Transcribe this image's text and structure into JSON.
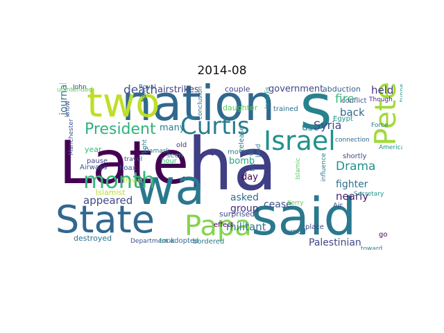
{
  "figure": {
    "title": "2014-08"
  },
  "colors": {
    "background": "#ffffff",
    "palette": [
      "#440154",
      "#3b528b",
      "#21908d",
      "#5dc863",
      "#fde725"
    ]
  },
  "words": [
    {
      "text": "Later",
      "color": "#440154",
      "size": 86
    },
    {
      "text": "ha",
      "color": "#3f3f86",
      "size": 104
    },
    {
      "text": "nation",
      "color": "#31688e",
      "size": 70
    },
    {
      "text": "s",
      "color": "#26828e",
      "size": 90
    },
    {
      "text": "two",
      "color": "#bddf26",
      "size": 58
    },
    {
      "text": "wa",
      "color": "#2a788e",
      "size": 70
    },
    {
      "text": "said",
      "color": "#2a788e",
      "size": 74
    },
    {
      "text": "State",
      "color": "#31688e",
      "size": 54
    },
    {
      "text": "Papa",
      "color": "#84d44b",
      "size": 40
    },
    {
      "text": "Peter",
      "color": "#a0da39",
      "size": 42
    },
    {
      "text": "Israel",
      "color": "#21918c",
      "size": 38
    },
    {
      "text": "Curtis",
      "color": "#287c8e",
      "size": 34
    },
    {
      "text": "month",
      "color": "#35b779",
      "size": 32
    },
    {
      "text": "President",
      "color": "#2db27d",
      "size": 22
    },
    {
      "text": "death",
      "color": "#3b528b",
      "size": 17
    },
    {
      "text": "airstrikes",
      "color": "#433e85",
      "size": 13
    },
    {
      "text": "government",
      "color": "#414487",
      "size": 13
    },
    {
      "text": "abduction",
      "color": "#355f8d",
      "size": 11
    },
    {
      "text": "held",
      "color": "#46337e",
      "size": 15
    },
    {
      "text": "fire",
      "color": "#35b779",
      "size": 17
    },
    {
      "text": "back",
      "color": "#31688e",
      "size": 15
    },
    {
      "text": "Syria",
      "color": "#404688",
      "size": 16
    },
    {
      "text": "use",
      "color": "#26828e",
      "size": 14
    },
    {
      "text": "many",
      "color": "#2a788e",
      "size": 13
    },
    {
      "text": "Drama",
      "color": "#21918c",
      "size": 17
    },
    {
      "text": "fighter",
      "color": "#2d708e",
      "size": 14
    },
    {
      "text": "nearly",
      "color": "#481f70",
      "size": 15
    },
    {
      "text": "appeared",
      "color": "#3e4989",
      "size": 15
    },
    {
      "text": "bomb",
      "color": "#21a685",
      "size": 13
    },
    {
      "text": "day",
      "color": "#440154",
      "size": 13
    },
    {
      "text": "asked",
      "color": "#2e6e8e",
      "size": 14
    },
    {
      "text": "cease",
      "color": "#3b528b",
      "size": 14
    },
    {
      "text": "group",
      "color": "#472d7b",
      "size": 14
    },
    {
      "text": "militant",
      "color": "#2c728e",
      "size": 15
    },
    {
      "text": "Palestinian",
      "color": "#414487",
      "size": 14
    },
    {
      "text": "journalist",
      "color": "#2a788e",
      "size": 14
    },
    {
      "text": "year",
      "color": "#35b779",
      "size": 11
    },
    {
      "text": "pause",
      "color": "#404688",
      "size": 10
    },
    {
      "text": "Airways",
      "color": "#3b528b",
      "size": 10
    },
    {
      "text": "Islamist",
      "color": "#b5de2b",
      "size": 11
    },
    {
      "text": "destroyed",
      "color": "#2d708e",
      "size": 11
    },
    {
      "text": "Department",
      "color": "#3b528b",
      "size": 9
    },
    {
      "text": "took",
      "color": "#21918c",
      "size": 10
    },
    {
      "text": "adopted",
      "color": "#31688e",
      "size": 10
    },
    {
      "text": "bordered",
      "color": "#2a788e",
      "size": 10
    },
    {
      "text": "surprised",
      "color": "#3e4989",
      "size": 11
    },
    {
      "text": "effect",
      "color": "#440154",
      "size": 10
    },
    {
      "text": "moving",
      "color": "#2a788e",
      "size": 10
    },
    {
      "text": "seen",
      "color": "#1f9e89",
      "size": 10
    },
    {
      "text": "old",
      "color": "#46337e",
      "size": 10
    },
    {
      "text": "hour",
      "color": "#35b779",
      "size": 10
    },
    {
      "text": "Damask",
      "color": "#2a788e",
      "size": 9
    },
    {
      "text": "travel",
      "color": "#404688",
      "size": 9
    },
    {
      "text": "hoax",
      "color": "#3b528b",
      "size": 10
    },
    {
      "text": "John",
      "color": "#433e85",
      "size": 9
    },
    {
      "text": "Royal",
      "color": "#355f8d",
      "size": 9
    },
    {
      "text": "couple",
      "color": "#404688",
      "size": 11
    },
    {
      "text": "daughter",
      "color": "#5ec962",
      "size": 11
    },
    {
      "text": "trained",
      "color": "#2e6e8e",
      "size": 10
    },
    {
      "text": "Egypt",
      "color": "#21918c",
      "size": 10
    },
    {
      "text": "conflict",
      "color": "#3b528b",
      "size": 10
    },
    {
      "text": "Though",
      "color": "#472d7b",
      "size": 9
    },
    {
      "text": "Force",
      "color": "#2a788e",
      "size": 9
    },
    {
      "text": "connection",
      "color": "#31688e",
      "size": 9
    },
    {
      "text": "shortly",
      "color": "#3e4989",
      "size": 10
    },
    {
      "text": "American",
      "color": "#21918c",
      "size": 9
    },
    {
      "text": "Secretary",
      "color": "#21918c",
      "size": 9
    },
    {
      "text": "Air",
      "color": "#3b528b",
      "size": 10
    },
    {
      "text": "Kerry",
      "color": "#5ec962",
      "size": 9
    },
    {
      "text": "place",
      "color": "#404688",
      "size": 10
    },
    {
      "text": "turned",
      "color": "#31688e",
      "size": 10
    },
    {
      "text": "go",
      "color": "#440154",
      "size": 10
    },
    {
      "text": "toward",
      "color": "#2a788e",
      "size": 9
    },
    {
      "text": "release",
      "color": "#2a788e",
      "size": 10
    },
    {
      "text": "conclusion",
      "color": "#31688e",
      "size": 9
    },
    {
      "text": "Israelis",
      "color": "#21918c",
      "size": 9
    },
    {
      "text": "land",
      "color": "#2a788e",
      "size": 9
    },
    {
      "text": "lift",
      "color": "#3b528b",
      "size": 9
    },
    {
      "text": "unintended",
      "color": "#5ec962",
      "size": 9
    },
    {
      "text": "Manchester",
      "color": "#3b528b",
      "size": 9
    },
    {
      "text": "flight",
      "color": "#2a788e",
      "size": 9
    },
    {
      "text": "threat",
      "color": "#b5de2b",
      "size": 9
    },
    {
      "text": "ban",
      "color": "#31688e",
      "size": 9
    },
    {
      "text": "tunnel",
      "color": "#21918c",
      "size": 9
    },
    {
      "text": "know",
      "color": "#3b528b",
      "size": 9
    },
    {
      "text": "Islamic",
      "color": "#5ec962",
      "size": 9
    },
    {
      "text": "influence",
      "color": "#2a788e",
      "size": 9
    }
  ]
}
